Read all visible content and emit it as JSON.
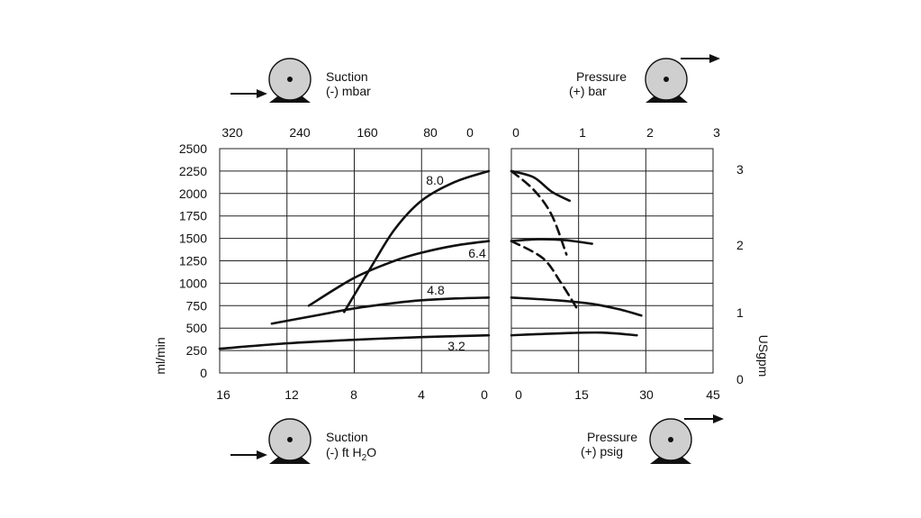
{
  "chart_data": {
    "type": "line",
    "panels": {
      "suction": {
        "top_axis": {
          "ticks": [
            "320",
            "240",
            "160",
            "80",
            "0"
          ]
        },
        "bottom_axis": {
          "ticks": [
            "16",
            "12",
            "8",
            "4",
            "0"
          ]
        },
        "series": [
          {
            "name": "8.0",
            "dashed": false,
            "points": [
              [
                8.6,
                680
              ],
              [
                7.0,
                1180
              ],
              [
                5.6,
                1600
              ],
              [
                4.0,
                1920
              ],
              [
                2.0,
                2130
              ],
              [
                0,
                2250
              ]
            ]
          },
          {
            "name": "6.4",
            "dashed": false,
            "points": [
              [
                10.7,
                750
              ],
              [
                8.0,
                1060
              ],
              [
                5.6,
                1250
              ],
              [
                4.0,
                1340
              ],
              [
                2.0,
                1420
              ],
              [
                0,
                1470
              ]
            ]
          },
          {
            "name": "4.8",
            "dashed": false,
            "points": [
              [
                12.9,
                550
              ],
              [
                10.0,
                650
              ],
              [
                8.0,
                720
              ],
              [
                5.6,
                780
              ],
              [
                4.0,
                810
              ],
              [
                2.0,
                830
              ],
              [
                0,
                840
              ]
            ]
          },
          {
            "name": "3.2",
            "dashed": false,
            "points": [
              [
                16,
                270
              ],
              [
                12.0,
                330
              ],
              [
                8.0,
                370
              ],
              [
                4.0,
                400
              ],
              [
                2.0,
                410
              ],
              [
                0,
                420
              ]
            ]
          }
        ]
      },
      "pressure": {
        "top_axis": {
          "ticks": [
            "0",
            "1",
            "2",
            "3"
          ]
        },
        "bottom_axis": {
          "ticks": [
            "0",
            "15",
            "30",
            "45"
          ]
        },
        "series": [
          {
            "name": "8.0",
            "dashed": false,
            "points": [
              [
                0,
                2250
              ],
              [
                5,
                2180
              ],
              [
                9,
                2020
              ],
              [
                13,
                1920
              ]
            ]
          },
          {
            "name": "8.0",
            "dashed": true,
            "points": [
              [
                0,
                2250
              ],
              [
                5,
                2040
              ],
              [
                9,
                1760
              ],
              [
                12.3,
                1320
              ]
            ]
          },
          {
            "name": "6.4",
            "dashed": false,
            "points": [
              [
                0,
                1470
              ],
              [
                6,
                1490
              ],
              [
                12,
                1480
              ],
              [
                18,
                1440
              ]
            ]
          },
          {
            "name": "6.4",
            "dashed": true,
            "points": [
              [
                0,
                1470
              ],
              [
                7,
                1280
              ],
              [
                11,
                1010
              ],
              [
                14.5,
                730
              ]
            ]
          },
          {
            "name": "4.8",
            "dashed": false,
            "points": [
              [
                0,
                840
              ],
              [
                10,
                810
              ],
              [
                18,
                770
              ],
              [
                24,
                710
              ],
              [
                29,
                640
              ]
            ]
          },
          {
            "name": "3.2",
            "dashed": false,
            "points": [
              [
                0,
                420
              ],
              [
                10,
                440
              ],
              [
                20,
                450
              ],
              [
                28,
                420
              ]
            ]
          }
        ]
      }
    },
    "y_left": {
      "label": "ml/min",
      "ticks": [
        "0",
        "250",
        "500",
        "750",
        "1000",
        "1250",
        "1500",
        "1750",
        "2000",
        "2250",
        "2500"
      ],
      "range": [
        0,
        2500
      ]
    },
    "y_right": {
      "label": "USgpm",
      "ticks": [
        "0",
        "1",
        "2",
        "3"
      ]
    },
    "grid": true
  },
  "pumps": {
    "top_left": {
      "line1": "Suction",
      "line2": "(-) mbar"
    },
    "top_right": {
      "line1": "Pressure",
      "line2": "(+) bar"
    },
    "bottom_left": {
      "line1": "Suction",
      "line2_prefix": "(-) ft H",
      "line2_sub": "2",
      "line2_suffix": "O"
    },
    "bottom_right": {
      "line1": "Pressure",
      "line2": "(+) psig"
    }
  }
}
